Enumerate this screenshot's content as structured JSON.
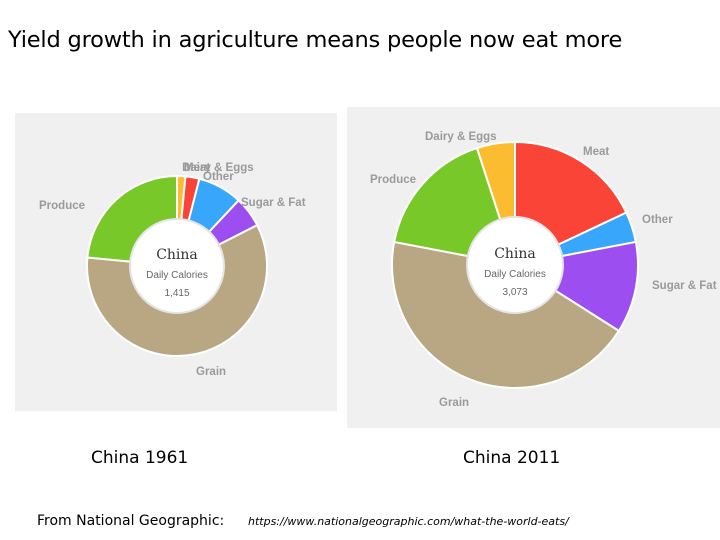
{
  "title": "Yield growth in agriculture means people now eat more",
  "colors": {
    "Grain": "#b9a784",
    "Produce": "#79c829",
    "Dairy & Eggs": "#fbbd2f",
    "Meat": "#fb4438",
    "Other": "#37a6fb",
    "Sugar & Fat": "#9c4ef1"
  },
  "chart_data": [
    {
      "type": "pie",
      "title": "China 1961",
      "center_title": "China",
      "center_subtitle": "Daily Calories",
      "center_value": "1,415",
      "categories": [
        "Dairy & Eggs",
        "Meat",
        "Other",
        "Sugar & Fat",
        "Grain",
        "Produce"
      ],
      "values": [
        1.5,
        2.5,
        8,
        5.5,
        59,
        23.5
      ],
      "units": "percent of daily calories (estimated)"
    },
    {
      "type": "pie",
      "title": "China 2011",
      "center_title": "China",
      "center_subtitle": "Daily Calories",
      "center_value": "3,073",
      "categories": [
        "Meat",
        "Other",
        "Sugar & Fat",
        "Grain",
        "Produce",
        "Dairy & Eggs"
      ],
      "values": [
        18,
        4,
        12,
        44,
        17,
        5
      ],
      "units": "percent of daily calories (estimated)"
    }
  ],
  "captions": [
    "China 1961",
    "China 2011"
  ],
  "source": {
    "label": "From National Geographic:",
    "url": "https://www.nationalgeographic.com/what-the-world-eats/"
  }
}
